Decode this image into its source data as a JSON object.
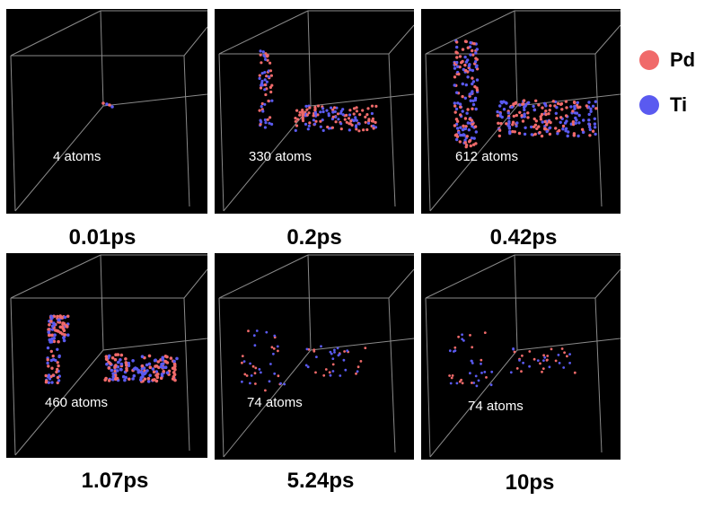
{
  "legend": {
    "items": [
      {
        "label": "Pd",
        "color": "#f06a6a"
      },
      {
        "label": "Ti",
        "color": "#5a5af0"
      }
    ]
  },
  "colors": {
    "panel_bg": "#000000",
    "edge": "#8a8a8a"
  },
  "panels": [
    {
      "time": "0.01ps",
      "atoms": "4 atoms"
    },
    {
      "time": "0.2ps",
      "atoms": "330 atoms"
    },
    {
      "time": "0.42ps",
      "atoms": "612 atoms"
    },
    {
      "time": "1.07ps",
      "atoms": "460 atoms"
    },
    {
      "time": "5.24ps",
      "atoms": "74 atoms"
    },
    {
      "time": "10ps",
      "atoms": "74 atoms"
    }
  ]
}
